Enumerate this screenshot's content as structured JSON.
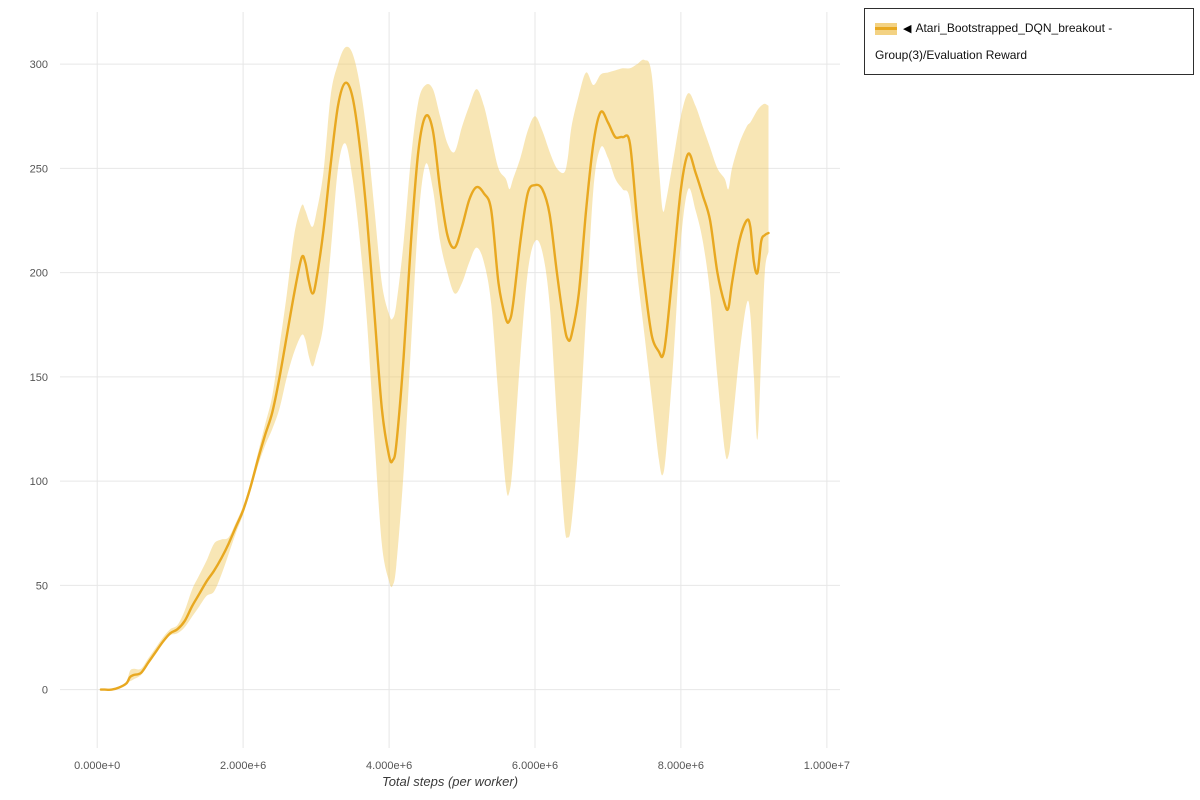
{
  "legend": {
    "collapse_icon": "◀",
    "label": "Atari_Bootstrapped_DQN_breakout - Group(3)/Evaluation Reward"
  },
  "chart_data": {
    "type": "line",
    "title": "",
    "xlabel": "Total steps (per worker)",
    "ylabel": "",
    "grid": true,
    "legend_position": "top-right",
    "x_scale": 1000000,
    "xlim_millions": [
      -0.51,
      10.18
    ],
    "ylim": [
      -28,
      325
    ],
    "xticks": [
      {
        "v": 0,
        "label": "0.000e+0"
      },
      {
        "v": 2,
        "label": "2.000e+6"
      },
      {
        "v": 4,
        "label": "4.000e+6"
      },
      {
        "v": 6,
        "label": "6.000e+6"
      },
      {
        "v": 8,
        "label": "8.000e+6"
      },
      {
        "v": 10,
        "label": "1.000e+7"
      }
    ],
    "yticks": [
      {
        "v": 0,
        "label": "0"
      },
      {
        "v": 50,
        "label": "50"
      },
      {
        "v": 100,
        "label": "100"
      },
      {
        "v": 150,
        "label": "150"
      },
      {
        "v": 200,
        "label": "200"
      },
      {
        "v": 250,
        "label": "250"
      },
      {
        "v": 300,
        "label": "300"
      }
    ],
    "series": [
      {
        "name": "Atari_Bootstrapped_DQN_breakout - Group(3)/Evaluation Reward",
        "color": "#e8a820",
        "band_color": "#f0c75a",
        "band_opacity": 0.45,
        "x_millions": [
          0.05,
          0.1,
          0.2,
          0.3,
          0.4,
          0.45,
          0.5,
          0.6,
          0.7,
          0.8,
          0.9,
          1,
          1.1,
          1.2,
          1.3,
          1.4,
          1.5,
          1.6,
          1.7,
          1.8,
          1.9,
          2,
          2.1,
          2.2,
          2.3,
          2.4,
          2.5,
          2.6,
          2.7,
          2.8,
          2.85,
          2.9,
          2.95,
          3,
          3.1,
          3.2,
          3.3,
          3.4,
          3.5,
          3.6,
          3.7,
          3.8,
          3.9,
          4,
          4.05,
          4.1,
          4.2,
          4.3,
          4.4,
          4.5,
          4.6,
          4.7,
          4.8,
          4.9,
          5,
          5.1,
          5.2,
          5.3,
          5.4,
          5.5,
          5.6,
          5.65,
          5.7,
          5.8,
          5.9,
          6,
          6.1,
          6.2,
          6.3,
          6.4,
          6.45,
          6.5,
          6.6,
          6.7,
          6.8,
          6.9,
          7,
          7.1,
          7.2,
          7.3,
          7.4,
          7.5,
          7.6,
          7.7,
          7.75,
          7.8,
          7.9,
          8,
          8.1,
          8.2,
          8.3,
          8.4,
          8.5,
          8.6,
          8.65,
          8.7,
          8.8,
          8.9,
          8.95,
          9,
          9.05,
          9.1,
          9.15,
          9.2
        ],
        "mean": [
          0,
          0,
          0,
          1,
          3,
          6,
          7,
          8,
          13,
          18,
          23,
          27,
          29,
          33,
          40,
          46,
          52,
          57,
          63,
          70,
          78,
          86,
          97,
          110,
          122,
          133,
          150,
          170,
          190,
          207,
          205,
          196,
          190,
          196,
          220,
          252,
          280,
          291,
          284,
          260,
          225,
          180,
          135,
          112,
          110,
          118,
          160,
          215,
          258,
          275,
          268,
          240,
          218,
          212,
          222,
          235,
          241,
          238,
          230,
          195,
          178,
          177,
          185,
          215,
          238,
          242,
          240,
          228,
          200,
          175,
          168,
          170,
          190,
          230,
          262,
          277,
          272,
          265,
          265,
          262,
          225,
          195,
          170,
          162,
          160,
          170,
          205,
          240,
          257,
          248,
          237,
          225,
          200,
          185,
          183,
          195,
          215,
          225,
          222,
          205,
          200,
          215,
          218,
          219
        ],
        "band_low": [
          0,
          0,
          0,
          1,
          3,
          4,
          5,
          7,
          12,
          17,
          22,
          26,
          27,
          30,
          35,
          40,
          45,
          47,
          55,
          65,
          75,
          84,
          95,
          107,
          117,
          125,
          135,
          150,
          162,
          170,
          168,
          160,
          155,
          160,
          175,
          210,
          250,
          262,
          245,
          215,
          175,
          120,
          70,
          52,
          50,
          60,
          105,
          165,
          225,
          252,
          240,
          215,
          200,
          190,
          195,
          205,
          212,
          205,
          185,
          140,
          98,
          95,
          110,
          160,
          200,
          215,
          210,
          185,
          130,
          80,
          73,
          80,
          120,
          180,
          240,
          260,
          255,
          245,
          240,
          235,
          200,
          170,
          140,
          110,
          103,
          115,
          160,
          215,
          240,
          230,
          215,
          190,
          150,
          115,
          112,
          125,
          160,
          185,
          180,
          150,
          120,
          160,
          200,
          210
        ],
        "band_high": [
          0,
          0,
          0,
          1,
          4,
          9,
          10,
          10,
          15,
          20,
          25,
          29,
          31,
          38,
          48,
          55,
          62,
          70,
          72,
          73,
          80,
          88,
          99,
          113,
          127,
          141,
          165,
          190,
          218,
          232,
          230,
          225,
          222,
          228,
          248,
          285,
          300,
          308,
          305,
          290,
          265,
          230,
          195,
          180,
          178,
          185,
          215,
          255,
          282,
          290,
          288,
          275,
          262,
          258,
          270,
          280,
          288,
          280,
          265,
          250,
          245,
          240,
          245,
          255,
          268,
          275,
          268,
          258,
          250,
          248,
          255,
          270,
          285,
          296,
          290,
          295,
          296,
          297,
          298,
          298,
          300,
          302,
          295,
          250,
          230,
          235,
          255,
          275,
          286,
          280,
          270,
          260,
          250,
          245,
          240,
          250,
          262,
          270,
          272,
          275,
          278,
          280,
          281,
          280
        ]
      }
    ]
  }
}
